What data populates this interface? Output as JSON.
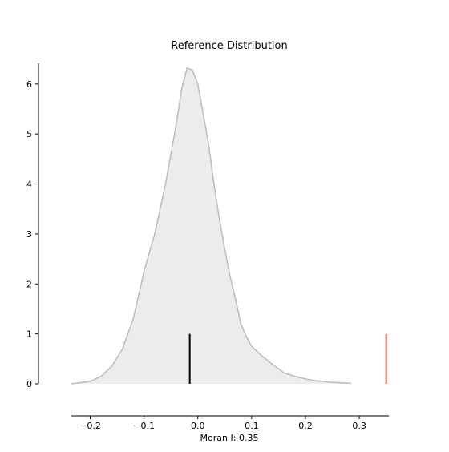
{
  "chart_data": {
    "type": "area",
    "title": "Reference Distribution",
    "xlabel": "Moran I: 0.35",
    "ylabel": "",
    "xlim": [
      -0.235,
      0.355
    ],
    "ylim": [
      0,
      6.35
    ],
    "xticks": [
      -0.2,
      -0.1,
      0.0,
      0.1,
      0.2,
      0.3
    ],
    "xtick_labels": [
      "−0.2",
      "−0.1",
      "0.0",
      "0.1",
      "0.2",
      "0.3"
    ],
    "yticks": [
      0,
      1,
      2,
      3,
      4,
      5,
      6
    ],
    "ytick_labels": [
      "0",
      "1",
      "2",
      "3",
      "4",
      "5",
      "6"
    ],
    "grid": false,
    "series": [
      {
        "kind": "kde",
        "color": "#bbbbbb",
        "fill": "#ececec",
        "points": [
          [
            -0.235,
            0.0
          ],
          [
            -0.2,
            0.05
          ],
          [
            -0.18,
            0.15
          ],
          [
            -0.16,
            0.35
          ],
          [
            -0.14,
            0.7
          ],
          [
            -0.12,
            1.3
          ],
          [
            -0.1,
            2.25
          ],
          [
            -0.08,
            3.0
          ],
          [
            -0.06,
            4.0
          ],
          [
            -0.04,
            5.2
          ],
          [
            -0.03,
            5.9
          ],
          [
            -0.02,
            6.32
          ],
          [
            -0.01,
            6.28
          ],
          [
            0.0,
            6.0
          ],
          [
            0.01,
            5.4
          ],
          [
            0.02,
            4.8
          ],
          [
            0.03,
            4.0
          ],
          [
            0.04,
            3.3
          ],
          [
            0.05,
            2.7
          ],
          [
            0.06,
            2.15
          ],
          [
            0.07,
            1.7
          ],
          [
            0.08,
            1.2
          ],
          [
            0.09,
            0.95
          ],
          [
            0.1,
            0.75
          ],
          [
            0.12,
            0.55
          ],
          [
            0.14,
            0.38
          ],
          [
            0.16,
            0.22
          ],
          [
            0.18,
            0.15
          ],
          [
            0.2,
            0.1
          ],
          [
            0.22,
            0.06
          ],
          [
            0.25,
            0.03
          ],
          [
            0.285,
            0.01
          ]
        ]
      }
    ],
    "vlines": [
      {
        "x": -0.015,
        "y0": 0,
        "y1": 1,
        "color": "#000000"
      },
      {
        "x": 0.35,
        "y0": 0,
        "y1": 1,
        "color": "#d6604d"
      }
    ]
  }
}
